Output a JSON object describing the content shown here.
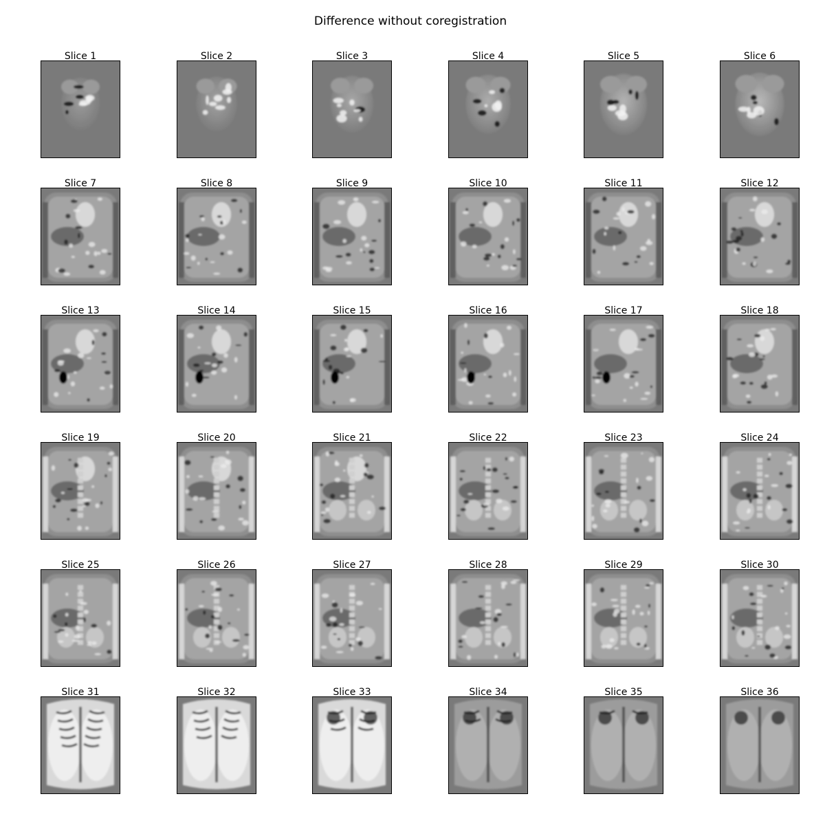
{
  "figure": {
    "title": "Difference without coregistration"
  },
  "slices": [
    {
      "label": "Slice 1"
    },
    {
      "label": "Slice 2"
    },
    {
      "label": "Slice 3"
    },
    {
      "label": "Slice 4"
    },
    {
      "label": "Slice 5"
    },
    {
      "label": "Slice 6"
    },
    {
      "label": "Slice 7"
    },
    {
      "label": "Slice 8"
    },
    {
      "label": "Slice 9"
    },
    {
      "label": "Slice 10"
    },
    {
      "label": "Slice 11"
    },
    {
      "label": "Slice 12"
    },
    {
      "label": "Slice 13"
    },
    {
      "label": "Slice 14"
    },
    {
      "label": "Slice 15"
    },
    {
      "label": "Slice 16"
    },
    {
      "label": "Slice 17"
    },
    {
      "label": "Slice 18"
    },
    {
      "label": "Slice 19"
    },
    {
      "label": "Slice 20"
    },
    {
      "label": "Slice 21"
    },
    {
      "label": "Slice 22"
    },
    {
      "label": "Slice 23"
    },
    {
      "label": "Slice 24"
    },
    {
      "label": "Slice 25"
    },
    {
      "label": "Slice 26"
    },
    {
      "label": "Slice 27"
    },
    {
      "label": "Slice 28"
    },
    {
      "label": "Slice 29"
    },
    {
      "label": "Slice 30"
    },
    {
      "label": "Slice 31"
    },
    {
      "label": "Slice 32"
    },
    {
      "label": "Slice 33"
    },
    {
      "label": "Slice 34"
    },
    {
      "label": "Slice 35"
    },
    {
      "label": "Slice 36"
    }
  ],
  "colors": {
    "background_gray": "#7a7a7a"
  }
}
